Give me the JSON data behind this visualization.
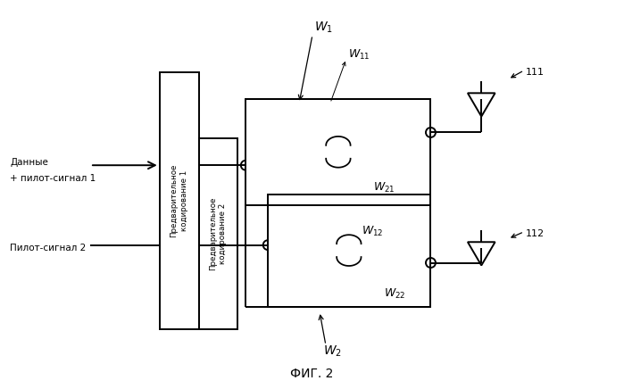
{
  "bg_color": "#ffffff",
  "line_color": "#000000",
  "title": "ФИГ. 2",
  "label_data1": "Данные",
  "label_data2": "+ пилот-сигнал 1",
  "label_pilot": "Пилот-сигнал 2",
  "label_box1": "Предварительное\nкодирование 1",
  "label_box2": "Предварительное\nкодирование 2",
  "label_111": "111",
  "label_112": "112",
  "label_W1": "$W_1$",
  "label_W2": "$W_2$",
  "label_W11": "$W_{11}$",
  "label_W12": "$W_{12}$",
  "label_W21": "$W_{21}$",
  "label_W22": "$W_{22}$"
}
